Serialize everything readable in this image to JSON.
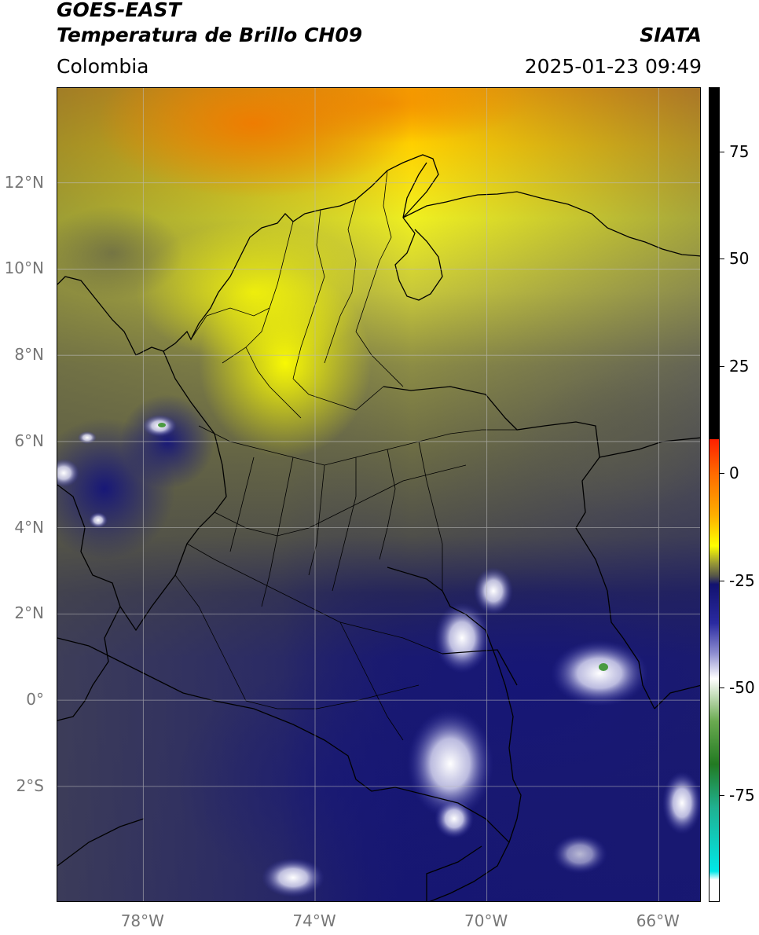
{
  "header": {
    "title_line1": "GOES-EAST",
    "title_line2": "Temperatura de Brillo CH09",
    "region": "Colombia",
    "organization": "SIATA",
    "datetime": "2025-01-23 09:49"
  },
  "map": {
    "lon_range": [
      -80,
      -65
    ],
    "lat_range": [
      -4.7,
      14.2
    ],
    "lat_ticks": [
      {
        "value": 12,
        "label": "12°N"
      },
      {
        "value": 10,
        "label": "10°N"
      },
      {
        "value": 8,
        "label": "8°N"
      },
      {
        "value": 6,
        "label": "6°N"
      },
      {
        "value": 4,
        "label": "4°N"
      },
      {
        "value": 2,
        "label": "2°N"
      },
      {
        "value": 0,
        "label": "0°"
      },
      {
        "value": -2,
        "label": "2°S"
      }
    ],
    "lon_ticks": [
      {
        "value": -78,
        "label": "78°W"
      },
      {
        "value": -74,
        "label": "74°W"
      },
      {
        "value": -70,
        "label": "70°W"
      },
      {
        "value": -66,
        "label": "66°W"
      }
    ],
    "colors": {
      "warm_orange": "#f58c00",
      "yellow": "#f2f200",
      "olive": "#6e6e3c",
      "gray": "#55554a",
      "navy": "#1a1a78",
      "white_cloud": "#f5f5ff",
      "gridline": "#bbbbbb"
    }
  },
  "colorbar": {
    "min": -100,
    "max": 90,
    "ticks": [
      {
        "value": 75,
        "label": "75"
      },
      {
        "value": 50,
        "label": "50"
      },
      {
        "value": 25,
        "label": "25"
      },
      {
        "value": 0,
        "label": "0"
      },
      {
        "value": -25,
        "label": "-25"
      },
      {
        "value": -50,
        "label": "-50"
      },
      {
        "value": -75,
        "label": "-75"
      }
    ],
    "stops": [
      {
        "value": 90,
        "color": "#000000"
      },
      {
        "value": 8,
        "color": "#000000"
      },
      {
        "value": 7.9,
        "color": "#ff2000"
      },
      {
        "value": 0,
        "color": "#ff6a00"
      },
      {
        "value": -10,
        "color": "#ffb000"
      },
      {
        "value": -17,
        "color": "#ffff00"
      },
      {
        "value": -21,
        "color": "#9a9a35"
      },
      {
        "value": -24,
        "color": "#555548"
      },
      {
        "value": -26,
        "color": "#121270"
      },
      {
        "value": -35,
        "color": "#2a2aa0"
      },
      {
        "value": -42,
        "color": "#8c8cd0"
      },
      {
        "value": -48,
        "color": "#ffffff"
      },
      {
        "value": -58,
        "color": "#6aaa50"
      },
      {
        "value": -68,
        "color": "#227a22"
      },
      {
        "value": -78,
        "color": "#20b090"
      },
      {
        "value": -93,
        "color": "#00e8e8"
      },
      {
        "value": -95,
        "color": "#ffffff"
      },
      {
        "value": -100,
        "color": "#ffffff"
      }
    ]
  }
}
